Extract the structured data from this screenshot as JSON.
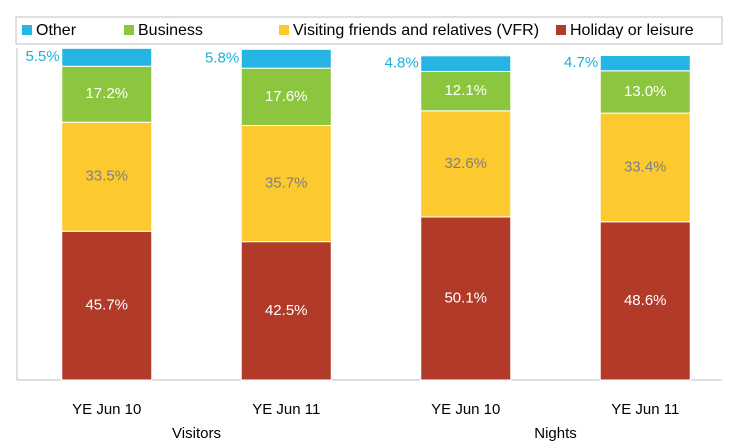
{
  "chart_data": {
    "type": "stacked_bar",
    "categories": [
      "YE Jun 10",
      "YE Jun 11",
      "YE Jun 10",
      "YE Jun 11"
    ],
    "category_groups": [
      "Visitors",
      "Nights"
    ],
    "ylim": [
      0,
      102
    ],
    "legend_position": "top",
    "series": [
      {
        "name": "Holiday or leisure",
        "color": "#b23a28",
        "label_color": "#ffffff",
        "values": [
          45.7,
          42.5,
          50.1,
          48.6
        ],
        "value_labels": [
          "45.7%",
          "42.5%",
          "50.1%",
          "48.6%"
        ]
      },
      {
        "name": "Visiting friends and relatives (VFR)",
        "color": "#fcc92e",
        "label_color": "#808080",
        "values": [
          33.5,
          35.7,
          32.6,
          33.4
        ],
        "value_labels": [
          "33.5%",
          "35.7%",
          "32.6%",
          "33.4%"
        ]
      },
      {
        "name": "Business",
        "color": "#8cc63e",
        "label_color": "#ffffff",
        "values": [
          17.2,
          17.6,
          12.1,
          13.0
        ],
        "value_labels": [
          "17.2%",
          "17.6%",
          "12.1%",
          "13.0%"
        ]
      },
      {
        "name": "Other",
        "color": "#25b4e4",
        "label_color": "#1ab0d8",
        "label_outside": true,
        "values": [
          5.5,
          5.8,
          4.8,
          4.7
        ],
        "value_labels": [
          "5.5%",
          "5.8%",
          "4.8%",
          "4.7%"
        ]
      }
    ]
  }
}
